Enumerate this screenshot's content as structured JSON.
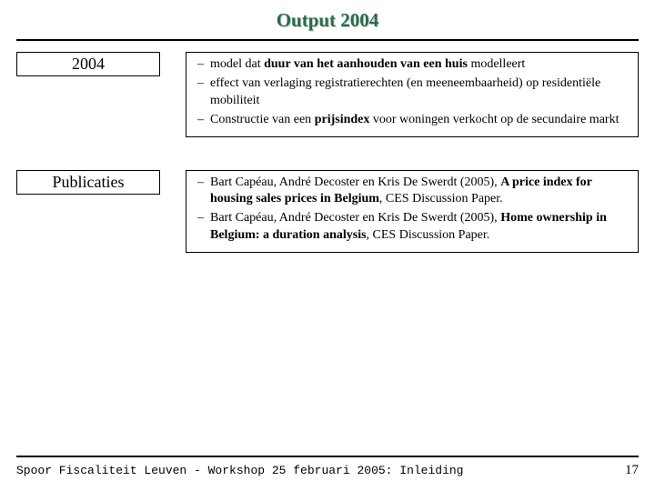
{
  "title": {
    "text": "Output 2004",
    "color": "#2b6a4a",
    "shadow_color": "#b8c9c0"
  },
  "sections": [
    {
      "label": "2004",
      "items": [
        {
          "pre": "model dat ",
          "bold1": "duur van het aanhouden van een huis",
          "post": " modelleert"
        },
        {
          "pre": "effect van verlaging registratierechten (en meeneembaarheid) op residentiële mobiliteit"
        },
        {
          "pre": "Constructie van een ",
          "bold1": "prijsindex",
          "post": " voor woningen verkocht op de secundaire markt"
        }
      ]
    },
    {
      "label": "Publicaties",
      "items": [
        {
          "pre": "Bart Capéau, André Decoster en Kris De Swerdt (2005), ",
          "bold1": "A price index for housing sales prices in Belgium",
          "post": ", CES Discussion Paper."
        },
        {
          "pre": "Bart Capéau, André Decoster en Kris De Swerdt (2005), ",
          "bold1": "Home ownership in Belgium: a duration analysis",
          "post": ", CES Discussion Paper."
        }
      ]
    }
  ],
  "footer": {
    "text": "Spoor Fiscaliteit Leuven - Workshop 25 februari 2005: Inleiding",
    "page": "17"
  }
}
